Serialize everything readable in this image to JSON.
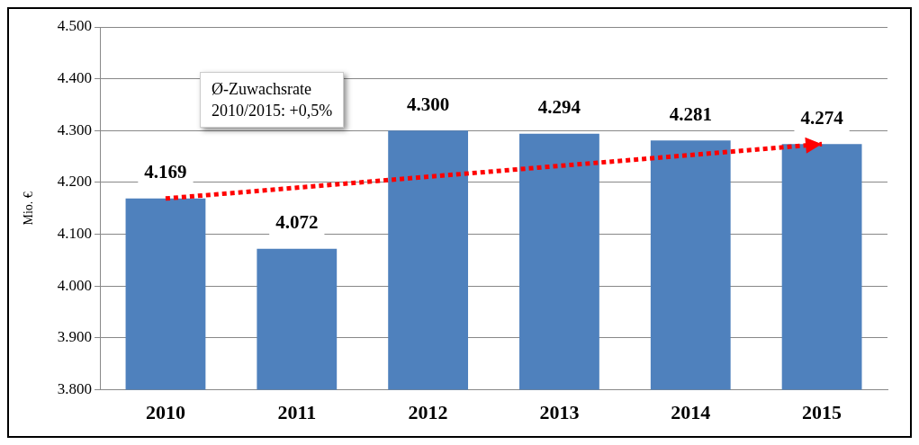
{
  "chart_data": {
    "type": "bar",
    "ylabel": "Mio. €",
    "categories": [
      "2010",
      "2011",
      "2012",
      "2013",
      "2014",
      "2015"
    ],
    "series": [
      {
        "color": "#4f81bd",
        "values": [
          4169,
          4072,
          4300,
          4294,
          4281,
          4274
        ],
        "value_labels": [
          "4.169",
          "4.072",
          "4.300",
          "4.294",
          "4.281",
          "4.274"
        ]
      },
      {
        "type": "line",
        "color": "#ff0000",
        "line_style": "dotted",
        "values": [
          4169,
          null,
          null,
          null,
          null,
          4274
        ]
      }
    ],
    "ylim": [
      3800,
      4500
    ],
    "yticks": [
      {
        "value": 3800,
        "label": "3.800"
      },
      {
        "value": 3900,
        "label": "3.900"
      },
      {
        "value": 4000,
        "label": "4.000"
      },
      {
        "value": 4100,
        "label": "4.100"
      },
      {
        "value": 4200,
        "label": "4.200"
      },
      {
        "value": 4300,
        "label": "4.300"
      },
      {
        "value": 4400,
        "label": "4.400"
      },
      {
        "value": 4500,
        "label": "4.500"
      }
    ],
    "grid": "y",
    "legend": false,
    "annotations": [
      "Ø-Zuwachsrate\n2010/2015: +0,5%"
    ]
  }
}
